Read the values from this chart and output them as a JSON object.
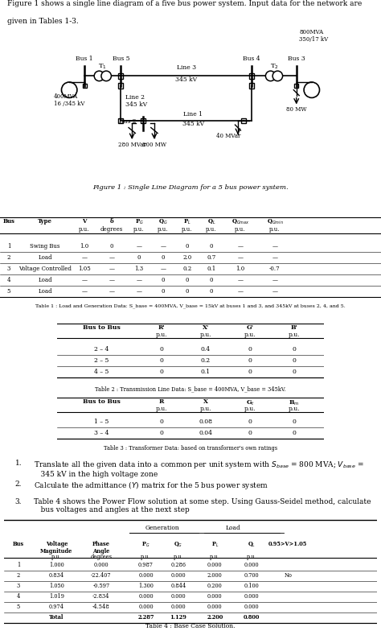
{
  "intro_text1": "Figure 1 shows a single line diagram of a five bus power system. Input data for the network are",
  "intro_text2": "given in Tables 1-3.",
  "fig_caption": "Figure 1 : Single Line Diagram for a 5 bus power system.",
  "table1_caption": "Table 1 : Load and Generation Data: S_base = 400MVA, V_base = 15kV at buses 1 and 3, and 345kV at buses 2, 4, and 5.",
  "table2_caption": "Table 2 : Transmission Line Data: S_base = 400MVA, V_base = 345kV.",
  "table3_caption": "Table 3 : Transformer Data: based on transformer's own ratings",
  "table4_caption": "Table 4 : Base Case Solution.",
  "t1_data": [
    [
      "1",
      "Swing Bus",
      "1.0",
      "0",
      "—",
      "—",
      "0",
      "0",
      "—",
      "—"
    ],
    [
      "2",
      "Load",
      "—",
      "—",
      "0",
      "0",
      "2.0",
      "0.7",
      "—",
      "—"
    ],
    [
      "3",
      "Voltage Controlled",
      "1.05",
      "—",
      "1.3",
      "—",
      "0.2",
      "0.1",
      "1.0",
      "-0.7"
    ],
    [
      "4",
      "Load",
      "—",
      "—",
      "—",
      "0",
      "0",
      "0",
      "—",
      "—"
    ],
    [
      "5",
      "Load",
      "—",
      "—",
      "—",
      "0",
      "0",
      "0",
      "—",
      "—"
    ]
  ],
  "t2_data": [
    [
      "2 – 4",
      "0",
      "0.4",
      "0",
      "0"
    ],
    [
      "2 – 5",
      "0",
      "0.2",
      "0",
      "0"
    ],
    [
      "4 – 5",
      "0",
      "0.1",
      "0",
      "0"
    ]
  ],
  "t3_data": [
    [
      "1 – 5",
      "0",
      "0.08",
      "0",
      "0"
    ],
    [
      "3 – 4",
      "0",
      "0.04",
      "0",
      "0"
    ]
  ],
  "t4_data": [
    [
      "1",
      "1.000",
      "0.000",
      "0.987",
      "0.286",
      "0.000",
      "0.000",
      ""
    ],
    [
      "2",
      "0.834",
      "-22.407",
      "0.000",
      "0.000",
      "2.000",
      "0.700",
      "No"
    ],
    [
      "3",
      "1.050",
      "-0.597",
      "1.300",
      "0.844",
      "0.200",
      "0.100",
      ""
    ],
    [
      "4",
      "1.019",
      "-2.834",
      "0.000",
      "0.000",
      "0.000",
      "0.000",
      ""
    ],
    [
      "5",
      "0.974",
      "-4.548",
      "0.000",
      "0.000",
      "0.000",
      "0.000",
      ""
    ],
    [
      "",
      "Total",
      "",
      "2.287",
      "1.129",
      "2.200",
      "0.800",
      ""
    ]
  ],
  "num_items": [
    "Translate all the given data into a common per unit system with $S_{base}$ = 800 MVA; $V_{base}$ =\n   345 kV in the high voltage zone",
    "Calculate the admittance ($Y$) matrix for the 5 bus power system",
    "Table 4 shows the Power Flow solution at some step. Using Gauss-Seidel method, calculate\n   bus voltages and angles at the next step"
  ]
}
